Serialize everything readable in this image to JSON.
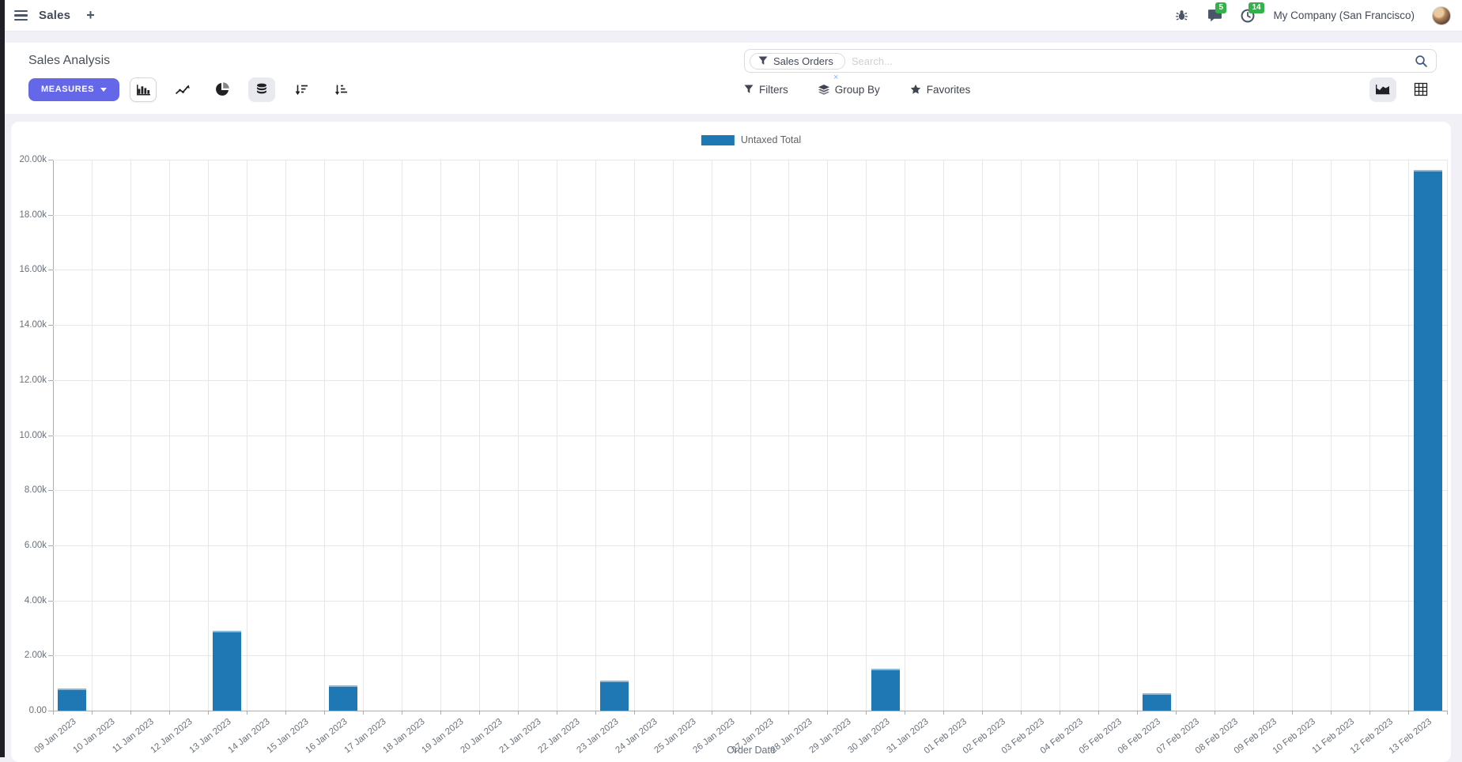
{
  "navbar": {
    "app_name": "Sales",
    "new_window_label": "+",
    "message_count": "5",
    "activity_count": "14",
    "company": "My Company (San Francisco)"
  },
  "control_panel": {
    "title": "Sales Analysis",
    "measures_label": "MEASURES",
    "search": {
      "facet": "Sales Orders",
      "facet_remove": "×",
      "placeholder": "Search..."
    },
    "filters_label": "Filters",
    "group_by_label": "Group By",
    "favorites_label": "Favorites"
  },
  "colors": {
    "accent": "#6468e8",
    "badge_green": "#35b04a",
    "bar_blue": "#1f77b4"
  },
  "chart_data": {
    "type": "bar",
    "title": "",
    "legend": [
      "Untaxed Total"
    ],
    "series_color": "#1f77b4",
    "xlabel": "Order Date",
    "ylabel": "",
    "ylim": [
      0,
      20000
    ],
    "ytick_step": 2000,
    "ytick_labels": [
      "0.00",
      "2.00k",
      "4.00k",
      "6.00k",
      "8.00k",
      "10.00k",
      "12.00k",
      "14.00k",
      "16.00k",
      "18.00k",
      "20.00k"
    ],
    "grid": true,
    "legend_position": "top",
    "categories": [
      "09 Jan 2023",
      "10 Jan 2023",
      "11 Jan 2023",
      "12 Jan 2023",
      "13 Jan 2023",
      "14 Jan 2023",
      "15 Jan 2023",
      "16 Jan 2023",
      "17 Jan 2023",
      "18 Jan 2023",
      "19 Jan 2023",
      "20 Jan 2023",
      "21 Jan 2023",
      "22 Jan 2023",
      "23 Jan 2023",
      "24 Jan 2023",
      "25 Jan 2023",
      "26 Jan 2023",
      "27 Jan 2023",
      "28 Jan 2023",
      "29 Jan 2023",
      "30 Jan 2023",
      "31 Jan 2023",
      "01 Feb 2023",
      "02 Feb 2023",
      "03 Feb 2023",
      "04 Feb 2023",
      "05 Feb 2023",
      "06 Feb 2023",
      "07 Feb 2023",
      "08 Feb 2023",
      "09 Feb 2023",
      "10 Feb 2023",
      "11 Feb 2023",
      "12 Feb 2023",
      "13 Feb 2023"
    ],
    "values": [
      810,
      0,
      0,
      0,
      2900,
      0,
      0,
      920,
      0,
      0,
      0,
      0,
      0,
      0,
      1080,
      0,
      0,
      0,
      0,
      0,
      0,
      1510,
      0,
      0,
      0,
      0,
      0,
      0,
      620,
      0,
      0,
      0,
      0,
      0,
      0,
      19630
    ]
  }
}
